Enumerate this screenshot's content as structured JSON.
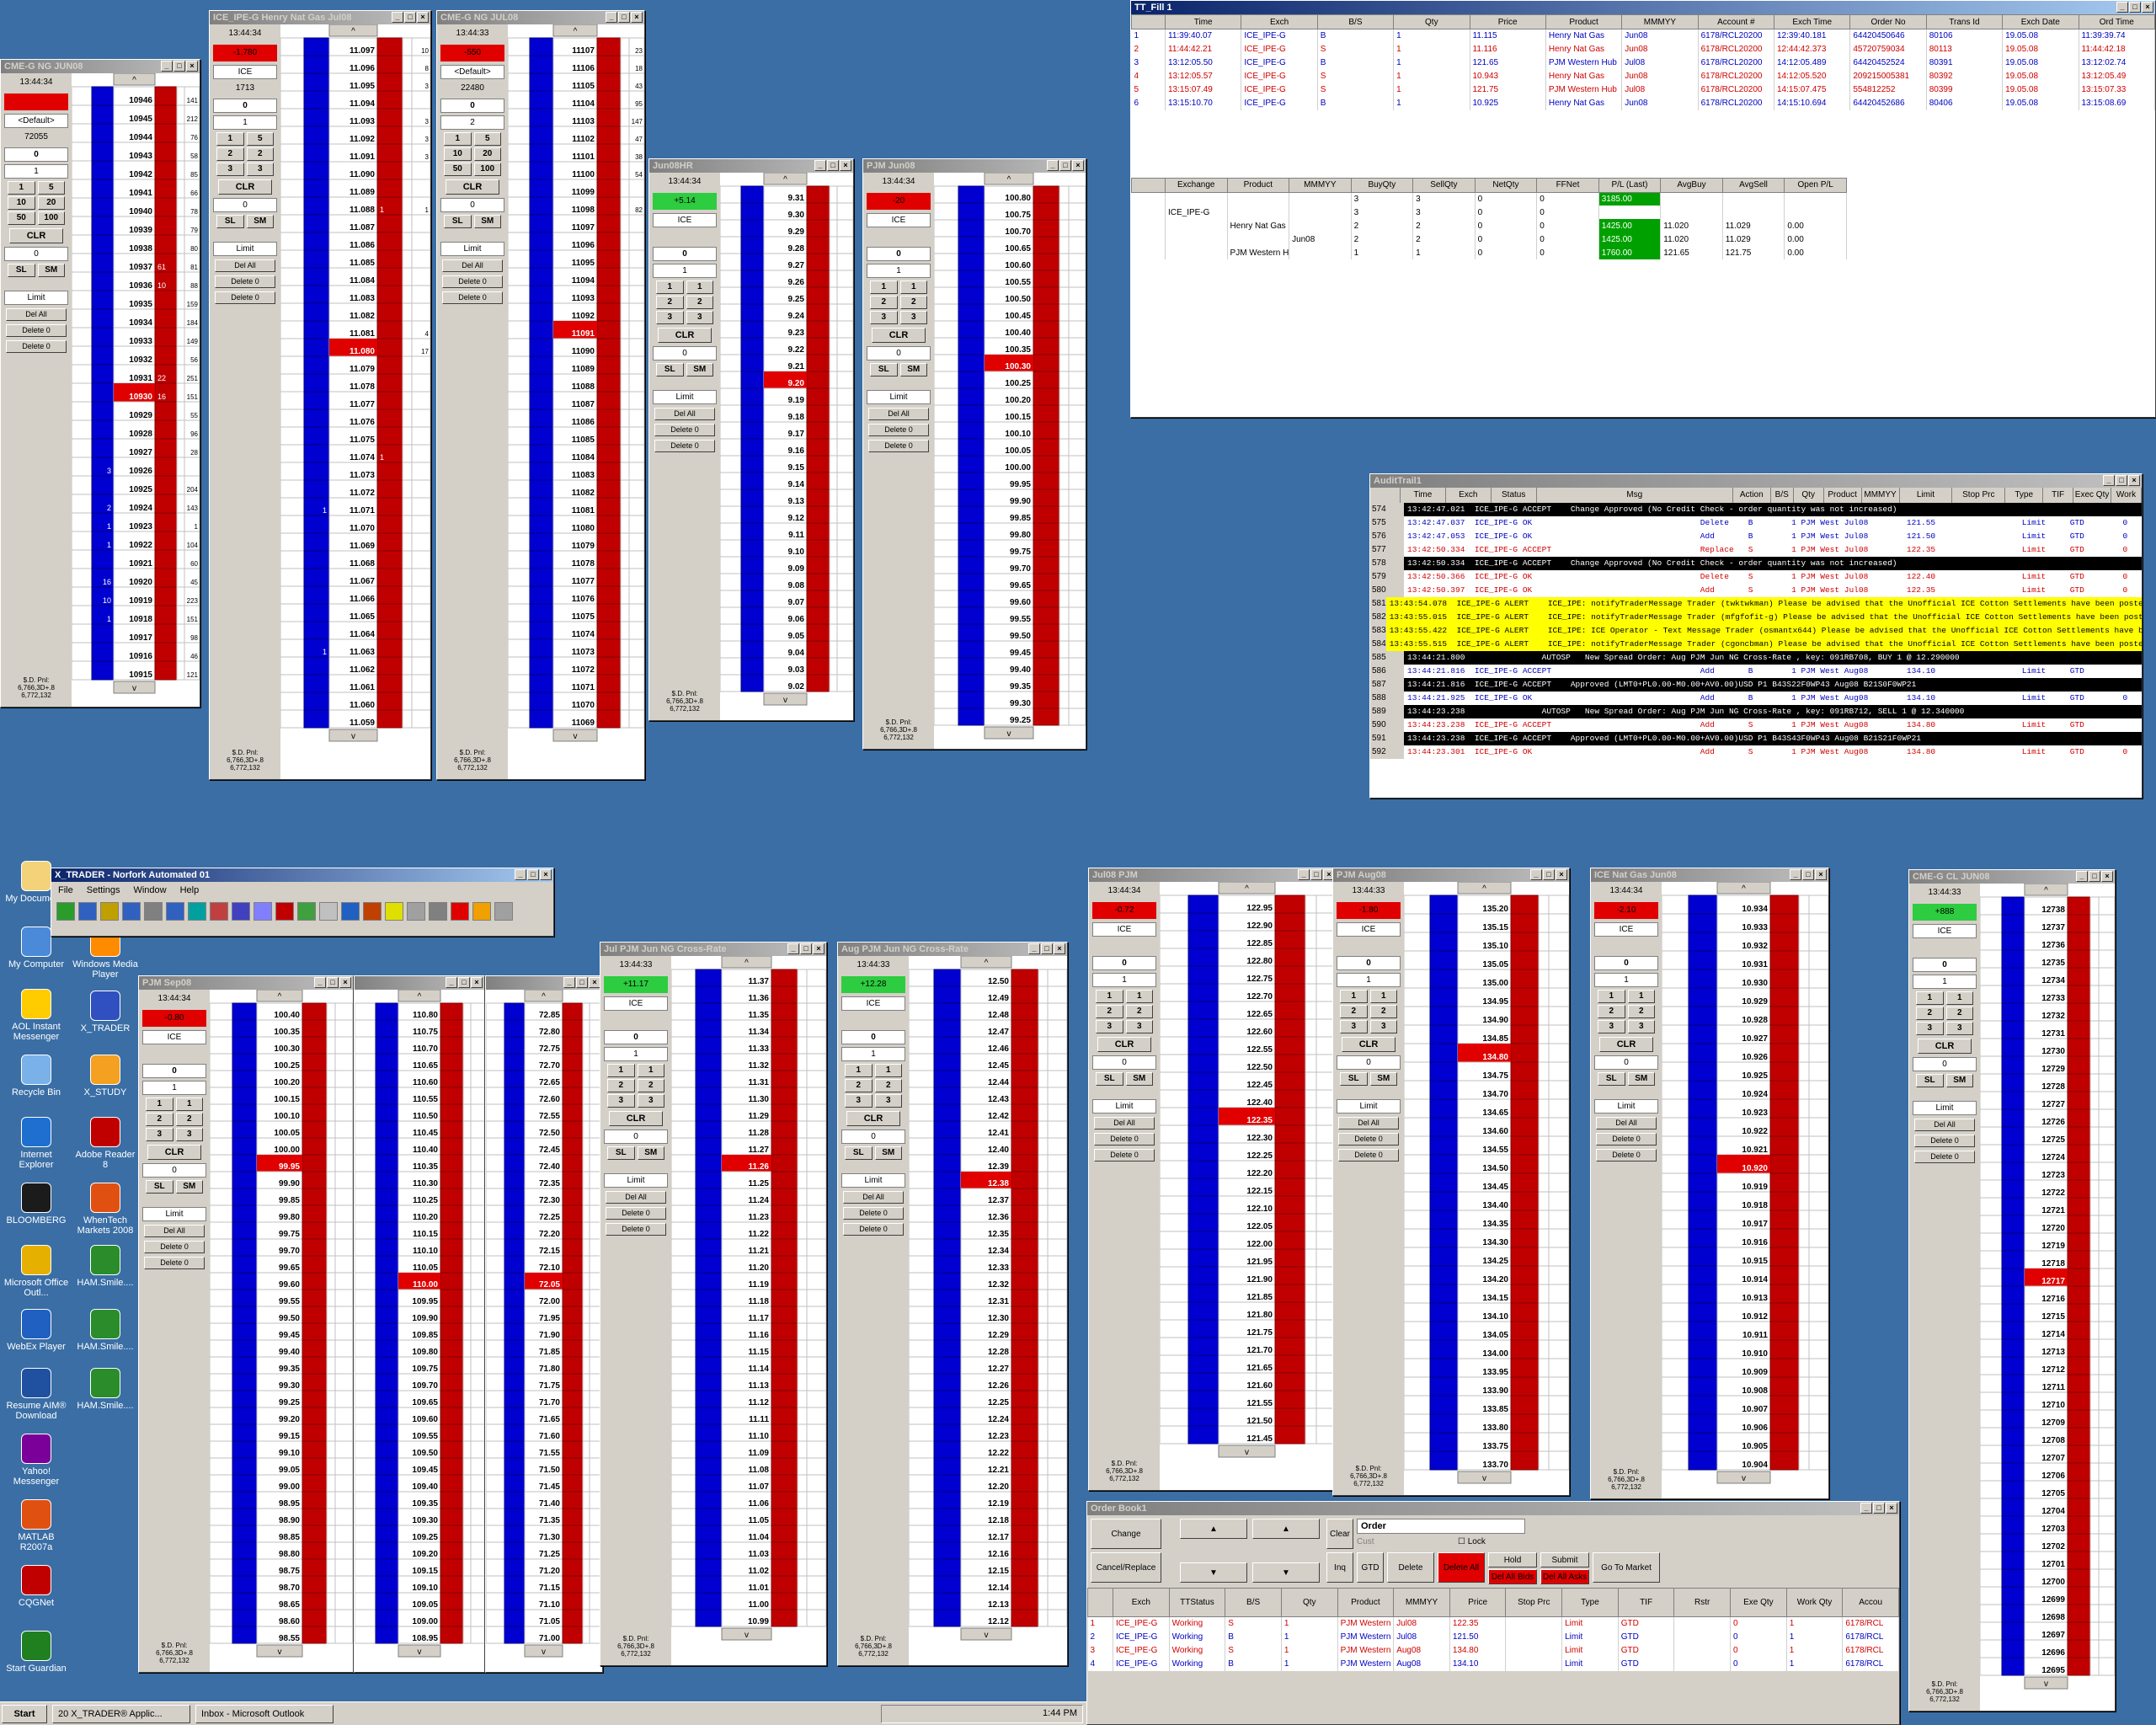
{
  "desktop_icons": [
    {
      "label": "My Documents",
      "color": "#f3d27a"
    },
    {
      "label": "Windows Media Player",
      "color": "#ff8c00"
    },
    {
      "label": "My Computer",
      "color": "#4a8ad8"
    },
    {
      "label": "AOL Instant Messenger",
      "color": "#ffcc00"
    },
    {
      "label": "X_TRADER",
      "color": "#3050c0"
    },
    {
      "label": "Recycle Bin",
      "color": "#7ab1e8"
    },
    {
      "label": "X_STUDY",
      "color": "#f4a020"
    },
    {
      "label": "Internet Explorer",
      "color": "#1e6fd0"
    },
    {
      "label": "Adobe Reader 8",
      "color": "#c00000"
    },
    {
      "label": "BLOOMBERG",
      "color": "#1b1b1b"
    },
    {
      "label": "WhenTech Markets 2008",
      "color": "#e05010"
    },
    {
      "label": "Microsoft Office Outl...",
      "color": "#e6b000"
    },
    {
      "label": "HAM.Smile....",
      "color": "#2a8c2a"
    },
    {
      "label": "WebEx Player",
      "color": "#2060c0"
    },
    {
      "label": "HAM.Smile....",
      "color": "#2a8c2a"
    },
    {
      "label": "Resume AIM® Download",
      "color": "#2050a0"
    },
    {
      "label": "HAM.Smile....",
      "color": "#2a8c2a"
    },
    {
      "label": "Yahoo! Messenger",
      "color": "#7b0099"
    },
    {
      "label": "MATLAB R2007a",
      "color": "#e05010"
    },
    {
      "label": "CQGNet",
      "color": "#c00000"
    },
    {
      "label": "Start Guardian",
      "color": "#208020"
    }
  ],
  "ladders": [
    {
      "title": "CME-G NG JUN08",
      "time": "13:44:34",
      "pnl": "",
      "acct": "<Default>",
      "qty1": "72055",
      "qty2": "0",
      "qty3": "1",
      "buttons": [
        "1",
        "5",
        "10",
        "20",
        "50",
        "100"
      ],
      "clear": "CLR",
      "sl": "SL",
      "sm": "SM",
      "order_type": "Limit",
      "del_all": "Del All",
      "delete0": "Delete 0",
      "delete0b": "Delete 0",
      "pnl_text": "$.D. Pnl: 6,766,3D+.8 6,772,132",
      "prices": [
        "10946",
        "10945",
        "10944",
        "10943",
        "10942",
        "10941",
        "10940",
        "10939",
        "10938",
        "10937",
        "10936",
        "10935",
        "10934",
        "10933",
        "10932",
        "10931",
        "10930",
        "10929",
        "10928",
        "10927",
        "10926",
        "10925",
        "10924",
        "10923",
        "10922",
        "10921",
        "10920",
        "10919",
        "10918",
        "10917",
        "10916",
        "10915"
      ],
      "vol": [
        "141",
        "212",
        "76",
        "58",
        "85",
        "66",
        "78",
        "79",
        "80",
        "81",
        "88",
        "159",
        "184",
        "149",
        "56",
        "251",
        "151",
        "55",
        "96",
        "28",
        "",
        "204",
        "143",
        "1",
        "104",
        "60",
        "45",
        "223",
        "151",
        "98",
        "46",
        "121"
      ],
      "bid_q": [
        "",
        "",
        "",
        "",
        "",
        "",
        "",
        "",
        "",
        "",
        "",
        "",
        "",
        "",
        "",
        "",
        "",
        "",
        "",
        "",
        "3",
        "",
        "2",
        "1",
        "1",
        "",
        "16",
        "10",
        "1",
        "",
        "",
        ""
      ],
      "ask_q": [
        "",
        "",
        "",
        "",
        "",
        "",
        "",
        "",
        "",
        "61",
        "10",
        "",
        "",
        "",
        "",
        "22",
        "16",
        "",
        "",
        "",
        "",
        "",
        "",
        "",
        "",
        "",
        "",
        "",
        "",
        "",
        "",
        ""
      ],
      "last_row": 16,
      "hl": 20
    },
    {
      "title": "ICE_IPE-G Henry Nat Gas Jul08",
      "time": "13:44:34",
      "pnl": "-1,780",
      "acct": "ICE",
      "qty1": "1713",
      "qty2": "0",
      "qty3": "1",
      "buttons": [
        "1",
        "5",
        "2",
        "2",
        "3",
        "3"
      ],
      "clear": "CLR",
      "sl": "SL",
      "sm": "SM",
      "order_type": "Limit",
      "del_all": "Del All",
      "delete0": "Delete 0",
      "delete0b": "Delete 0",
      "pnl_text": "$.D. Pnl: 6,766,3D+.8 6,772,132",
      "prices": [
        "11.097",
        "11.096",
        "11.095",
        "11.094",
        "11.093",
        "11.092",
        "11.091",
        "11.090",
        "11.089",
        "11.088",
        "11.087",
        "11.086",
        "11.085",
        "11.084",
        "11.083",
        "11.082",
        "11.081",
        "11.080",
        "11.079",
        "11.078",
        "11.077",
        "11.076",
        "11.075",
        "11.074",
        "11.073",
        "11.072",
        "11.071",
        "11.070",
        "11.069",
        "11.068",
        "11.067",
        "11.066",
        "11.065",
        "11.064",
        "11.063",
        "11.062",
        "11.061",
        "11.060",
        "11.059"
      ],
      "vol": [
        "10",
        "8",
        "3",
        "",
        "3",
        "3",
        "3",
        "",
        "",
        "1",
        "",
        "",
        "",
        "",
        "",
        "",
        "4",
        "17",
        "",
        "",
        "",
        "",
        "",
        "",
        "",
        "",
        "",
        "",
        "",
        "",
        "",
        "",
        "",
        "",
        "",
        "",
        "",
        "",
        ""
      ],
      "bid_q": [
        "",
        "",
        "",
        "",
        "",
        "",
        "",
        "",
        "",
        "",
        "",
        "",
        "",
        "",
        "",
        "",
        "",
        "",
        "",
        "",
        "",
        "",
        "",
        "",
        "",
        "",
        "1",
        "",
        "",
        "",
        "",
        "",
        "",
        "",
        "1",
        "",
        "",
        "",
        ""
      ],
      "ask_q": [
        "",
        "",
        "",
        "",
        "",
        "",
        "",
        "",
        "",
        "1",
        "",
        "",
        "",
        "",
        "",
        "",
        "",
        "",
        "",
        "",
        "",
        "",
        "",
        "1",
        "",
        "",
        "",
        "",
        "",
        "",
        "",
        "",
        "",
        "",
        "",
        "",
        "",
        "",
        ""
      ],
      "last_row": 17,
      "hl": 26
    },
    {
      "title": "CME-G NG JUL08",
      "time": "13:44:33",
      "pnl": "-550",
      "acct": "<Default>",
      "qty1": "22480",
      "qty2": "0",
      "qty3": "2",
      "buttons": [
        "1",
        "5",
        "10",
        "20",
        "50",
        "100"
      ],
      "clear": "CLR",
      "sl": "SL",
      "sm": "SM",
      "order_type": "Limit",
      "del_all": "Del All",
      "delete0": "Delete 0",
      "delete0b": "Delete 0",
      "pnl_text": "$.D. Pnl: 6,766,3D+.8 6,772,132",
      "prices": [
        "11107",
        "11106",
        "11105",
        "11104",
        "11103",
        "11102",
        "11101",
        "11100",
        "11099",
        "11098",
        "11097",
        "11096",
        "11095",
        "11094",
        "11093",
        "11092",
        "11091",
        "11090",
        "11089",
        "11088",
        "11087",
        "11086",
        "11085",
        "11084",
        "11083",
        "11082",
        "11081",
        "11080",
        "11079",
        "11078",
        "11077",
        "11076",
        "11075",
        "11074",
        "11073",
        "11072",
        "11071",
        "11070",
        "11069"
      ],
      "vol": [
        "23",
        "18",
        "43",
        "95",
        "147",
        "47",
        "38",
        "54",
        "",
        "82",
        "",
        "",
        "",
        "",
        "",
        "",
        "",
        "",
        "",
        "",
        "",
        "",
        "",
        "",
        "",
        "",
        "",
        "",
        "",
        "",
        "",
        "",
        "",
        "",
        "",
        "",
        "",
        "",
        ""
      ],
      "bid_q": [
        "",
        "",
        "",
        "",
        "",
        "",
        "",
        "",
        "",
        "",
        "",
        "",
        "",
        "",
        "",
        "",
        "",
        "",
        "",
        "",
        "",
        "",
        "",
        "",
        "",
        "",
        "",
        "",
        "",
        "",
        "",
        "",
        "",
        "",
        "",
        "",
        "",
        "",
        ""
      ],
      "ask_q": [
        "",
        "",
        "",
        "",
        "",
        "",
        "",
        "",
        "",
        "",
        "",
        "",
        "",
        "",
        "",
        "",
        "",
        "",
        "",
        "",
        "",
        "",
        "",
        "",
        "",
        "",
        "",
        "",
        "",
        "",
        "",
        "",
        "",
        "",
        "",
        "",
        "",
        "",
        ""
      ],
      "last_row": 16,
      "hl": 23
    }
  ],
  "ladder_small": [
    {
      "title": "Jun08HR",
      "time": "13:44:34",
      "pnl": "+5.14"
    },
    {
      "title": "PJM Jun08",
      "time": "13:44:34",
      "pnl": "-20"
    },
    {
      "title": "PJM  Sep08",
      "time": "13:44:34",
      "pnl": "-0.80"
    },
    {
      "title": "Jul PJM Jun NG Cross-Rate",
      "time": "13:44:33",
      "pnl": "+11.17"
    },
    {
      "title": "Aug PJM Jun NG Cross-Rate",
      "time": "13:44:33",
      "pnl": "+12.28"
    },
    {
      "title": "Jul08  PJM",
      "time": "13:44:34",
      "pnl": "-0.72"
    },
    {
      "title": "PJM Aug08",
      "time": "13:44:33",
      "pnl": "-1.80"
    },
    {
      "title": "ICE Nat Gas Jun08",
      "time": "13:44:34",
      "pnl": "-2.10"
    },
    {
      "title": "CME-G CL JUN08",
      "time": "13:44:33",
      "pnl": "+888"
    }
  ],
  "fill_window": {
    "title": "TT_Fill 1",
    "headers": [
      "Time",
      "Exch",
      "B/S",
      "Qty",
      "Price",
      "Product",
      "MMMYY",
      "Account #",
      "Exch Time",
      "Order No",
      "Trans Id",
      "Exch Date",
      "Ord Time"
    ],
    "rows": [
      [
        "1",
        "11:39:40.07",
        "ICE_IPE-G",
        "B",
        "1",
        "11.115",
        "Henry Nat Gas",
        "Jun08",
        "6178/RCL20200",
        "12:39:40.181",
        "64420450646",
        "80106",
        "19.05.08",
        "11:39:39.74"
      ],
      [
        "2",
        "11:44:42.21",
        "ICE_IPE-G",
        "S",
        "1",
        "11.116",
        "Henry Nat Gas",
        "Jun08",
        "6178/RCL20200",
        "12:44:42.373",
        "45720759034",
        "80113",
        "19.05.08",
        "11:44:42.18"
      ],
      [
        "3",
        "13:12:05.50",
        "ICE_IPE-G",
        "B",
        "1",
        "121.65",
        "PJM Western Hub",
        "Jul08",
        "6178/RCL20200",
        "14:12:05.489",
        "64420452524",
        "80391",
        "19.05.08",
        "13:12:02.74"
      ],
      [
        "4",
        "13:12:05.57",
        "ICE_IPE-G",
        "S",
        "1",
        "10.943",
        "Henry Nat Gas",
        "Jun08",
        "6178/RCL20200",
        "14:12:05.520",
        "209215005381",
        "80392",
        "19.05.08",
        "13:12:05.49"
      ],
      [
        "5",
        "13:15:07.49",
        "ICE_IPE-G",
        "S",
        "1",
        "121.75",
        "PJM Western Hub",
        "Jul08",
        "6178/RCL20200",
        "14:15:07.475",
        "554812252",
        "80399",
        "19.05.08",
        "13:15:07.33"
      ],
      [
        "6",
        "13:15:10.70",
        "ICE_IPE-G",
        "B",
        "1",
        "10.925",
        "Henry Nat Gas",
        "Jun08",
        "6178/RCL20200",
        "14:15:10.694",
        "64420452686",
        "80406",
        "19.05.08",
        "13:15:08.69"
      ]
    ],
    "pos_headers": [
      "Exchange",
      "Product",
      "MMMYY",
      "BuyQty",
      "SellQty",
      "NetQty",
      "FFNet",
      "P/L (Last)",
      "AvgBuy",
      "AvgSell",
      "Open P/L"
    ],
    "pos_rows": [
      [
        "",
        "",
        "",
        "3",
        "3",
        "0",
        "0",
        "3185.00",
        "",
        "",
        ""
      ],
      [
        "ICE_IPE-G",
        "",
        "",
        "3",
        "3",
        "0",
        "0",
        "",
        "",
        "",
        ""
      ],
      [
        "",
        "Henry Nat Gas",
        "",
        "2",
        "2",
        "0",
        "0",
        "1425.00",
        "11.020",
        "11.029",
        "0.00"
      ],
      [
        "",
        "",
        "Jun08",
        "2",
        "2",
        "0",
        "0",
        "1425.00",
        "11.020",
        "11.029",
        "0.00"
      ],
      [
        "",
        "PJM Western Hub",
        "",
        "1",
        "1",
        "0",
        "0",
        "1760.00",
        "121.65",
        "121.75",
        "0.00"
      ]
    ]
  },
  "audit": {
    "title": "AuditTrail1",
    "headers": [
      "Time",
      "Exch",
      "Status",
      "Msg",
      "Action",
      "B/S",
      "Qty",
      "Product",
      "MMMYY",
      "Limit",
      "Stop Prc",
      "Type",
      "TIF",
      "Exec Qty",
      "Work"
    ],
    "rows": [
      {
        "n": "574",
        "c": "k",
        "t": "13:42:47.021  ICE_IPE-G ACCEPT    Change Approved (No Credit Check - order quantity was not increased)"
      },
      {
        "n": "575",
        "c": "b",
        "t": "13:42:47.037  ICE_IPE-G OK                                   Delete    B        1 PJM West Jul08        121.55                  Limit     GTD        0"
      },
      {
        "n": "576",
        "c": "b",
        "t": "13:42:47.053  ICE_IPE-G OK                                   Add       B        1 PJM West Jul08        121.50                  Limit     GTD        0"
      },
      {
        "n": "577",
        "c": "r",
        "t": "13:42:50.334  ICE_IPE-G ACCEPT                               Replace   S        1 PJM West Jul08        122.35                  Limit     GTD        0"
      },
      {
        "n": "578",
        "c": "k",
        "t": "13:42:50.334  ICE_IPE-G ACCEPT    Change Approved (No Credit Check - order quantity was not increased)"
      },
      {
        "n": "579",
        "c": "r",
        "t": "13:42:50.366  ICE_IPE-G OK                                   Delete    S        1 PJM West Jul08        122.40                  Limit     GTD        0"
      },
      {
        "n": "580",
        "c": "r",
        "t": "13:42:50.397  ICE_IPE-G OK                                   Add       S        1 PJM West Jul08        122.35                  Limit     GTD        0"
      },
      {
        "n": "581",
        "c": "y",
        "t": "13:43:54.078  ICE_IPE-G ALERT    ICE_IPE: notifyTraderMessage Trader (twktwkman) Please be advised that the Unofficial ICE Cotton Settlements have been posted."
      },
      {
        "n": "582",
        "c": "y",
        "t": "13:43:55.015  ICE_IPE-G ALERT    ICE_IPE: notifyTraderMessage Trader (mfgfofit-g) Please be advised that the Unofficial ICE Cotton Settlements have been posted."
      },
      {
        "n": "583",
        "c": "y",
        "t": "13:43:55.422  ICE_IPE-G ALERT    ICE_IPE: ICE Operator - Text Message Trader (osmantx644) Please be advised that the Unofficial ICE Cotton Settlements have been posted."
      },
      {
        "n": "584",
        "c": "y",
        "t": "13:43:55.515  ICE_IPE-G ALERT    ICE_IPE: notifyTraderMessage Trader (cgoncbman) Please be advised that the Unofficial ICE Cotton Settlements have been posted."
      },
      {
        "n": "585",
        "c": "k",
        "t": "13:44:21.800                AUTOSP   New Spread Order: Aug PJM Jun NG Cross-Rate , key: 091RB708, BUY 1 @ 12.290000"
      },
      {
        "n": "586",
        "c": "b",
        "t": "13:44:21.816  ICE_IPE-G ACCEPT                               Add       B        1 PJM West Aug08        134.10                  Limit     GTD"
      },
      {
        "n": "587",
        "c": "k",
        "t": "13:44:21.816  ICE_IPE-G ACCEPT    Approved (LMT0+PL0.00-M0.00+AV0.00)USD P1 B43S22F0WP43 Aug08 B21S0F0WP21"
      },
      {
        "n": "588",
        "c": "b",
        "t": "13:44:21.925  ICE_IPE-G OK                                   Add       B        1 PJM West Aug08        134.10                  Limit     GTD        0"
      },
      {
        "n": "589",
        "c": "k",
        "t": "13:44:23.238                AUTOSP   New Spread Order: Aug PJM Jun NG Cross-Rate , key: 091RB712, SELL 1 @ 12.340000"
      },
      {
        "n": "590",
        "c": "r",
        "t": "13:44:23.238  ICE_IPE-G ACCEPT                               Add       S        1 PJM West Aug08        134.80                  Limit     GTD"
      },
      {
        "n": "591",
        "c": "k",
        "t": "13:44:23.238  ICE_IPE-G ACCEPT    Approved (LMT0+PL0.00-M0.00+AV0.00)USD P1 B43S43F0WP43 Aug08 B21S21F0WP21"
      },
      {
        "n": "592",
        "c": "r",
        "t": "13:44:23.301  ICE_IPE-G OK                                   Add       S        1 PJM West Aug08        134.80                  Limit     GTD        0"
      }
    ]
  },
  "xtrader": {
    "title": "X_TRADER - Norfork Automated 01",
    "menu": [
      "File",
      "Settings",
      "Window",
      "Help"
    ]
  },
  "orderbook": {
    "title": "Order Book1",
    "btns": [
      "Change",
      "Cancel/Replace",
      "Clear",
      "Order",
      "Inq",
      "GTD",
      "Delete",
      "Delete All",
      "Hold",
      "Submit",
      "Go To Market",
      "Del All Bids",
      "Del All Asks",
      "Cust",
      "Lock"
    ],
    "headers": [
      "Exch",
      "TTStatus",
      "B/S",
      "Qty",
      "Product",
      "MMMYY",
      "Price",
      "Stop Prc",
      "Type",
      "TIF",
      "Rstr",
      "Exe Qty",
      "Work Qty",
      "Accou"
    ],
    "rows": [
      [
        "1",
        "ICE_IPE-G",
        "Working",
        "S",
        "1",
        "PJM Western Hub",
        "Jul08",
        "122.35",
        "",
        "Limit",
        "GTD",
        "",
        "0",
        "1",
        "6178/RCL"
      ],
      [
        "2",
        "ICE_IPE-G",
        "Working",
        "B",
        "1",
        "PJM Western Hub",
        "Jul08",
        "121.50",
        "",
        "Limit",
        "GTD",
        "",
        "0",
        "1",
        "6178/RCL"
      ],
      [
        "3",
        "ICE_IPE-G",
        "Working",
        "S",
        "1",
        "PJM Western Hub",
        "Aug08",
        "134.80",
        "",
        "Limit",
        "GTD",
        "",
        "0",
        "1",
        "6178/RCL"
      ],
      [
        "4",
        "ICE_IPE-G",
        "Working",
        "B",
        "1",
        "PJM Western Hub",
        "Aug08",
        "134.10",
        "",
        "Limit",
        "GTD",
        "",
        "0",
        "1",
        "6178/RCL"
      ]
    ]
  },
  "taskbar": {
    "start": "Start",
    "items": [
      "20 X_TRADER® Applic...",
      "Inbox - Microsoft Outlook"
    ],
    "clock": "1:44 PM"
  }
}
